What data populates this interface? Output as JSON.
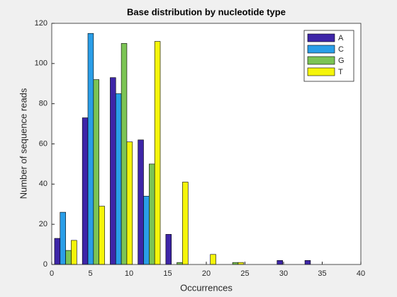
{
  "chart_data": {
    "type": "bar",
    "title": "Base distribution by nucleotide type",
    "x_label": "Occurrences",
    "y_label": "Number of sequence reads",
    "x": [
      1.8,
      5.4,
      9.0,
      12.6,
      16.2,
      19.8,
      23.4,
      27.0,
      30.6,
      34.2
    ],
    "bin_width": 3.6,
    "series": [
      {
        "name": "A",
        "color": "#3e26a8",
        "values": [
          13,
          73,
          93,
          62,
          15,
          0,
          0,
          0,
          2,
          2
        ]
      },
      {
        "name": "C",
        "color": "#2a9ee8",
        "values": [
          26,
          115,
          85,
          34,
          0,
          0,
          0,
          0,
          0,
          0
        ]
      },
      {
        "name": "G",
        "color": "#7cc455",
        "values": [
          7,
          92,
          110,
          50,
          1,
          0,
          1,
          0,
          0,
          0
        ]
      },
      {
        "name": "T",
        "color": "#f5f50a",
        "values": [
          12,
          29,
          61,
          111,
          41,
          5,
          1,
          0,
          0,
          0
        ]
      }
    ],
    "xlim": [
      0,
      40
    ],
    "xticks": [
      0,
      5,
      10,
      15,
      20,
      25,
      30,
      35,
      40
    ],
    "ylim": [
      0,
      120
    ],
    "yticks": [
      0,
      20,
      40,
      60,
      80,
      100,
      120
    ],
    "grid": false,
    "legend": "northeast"
  }
}
